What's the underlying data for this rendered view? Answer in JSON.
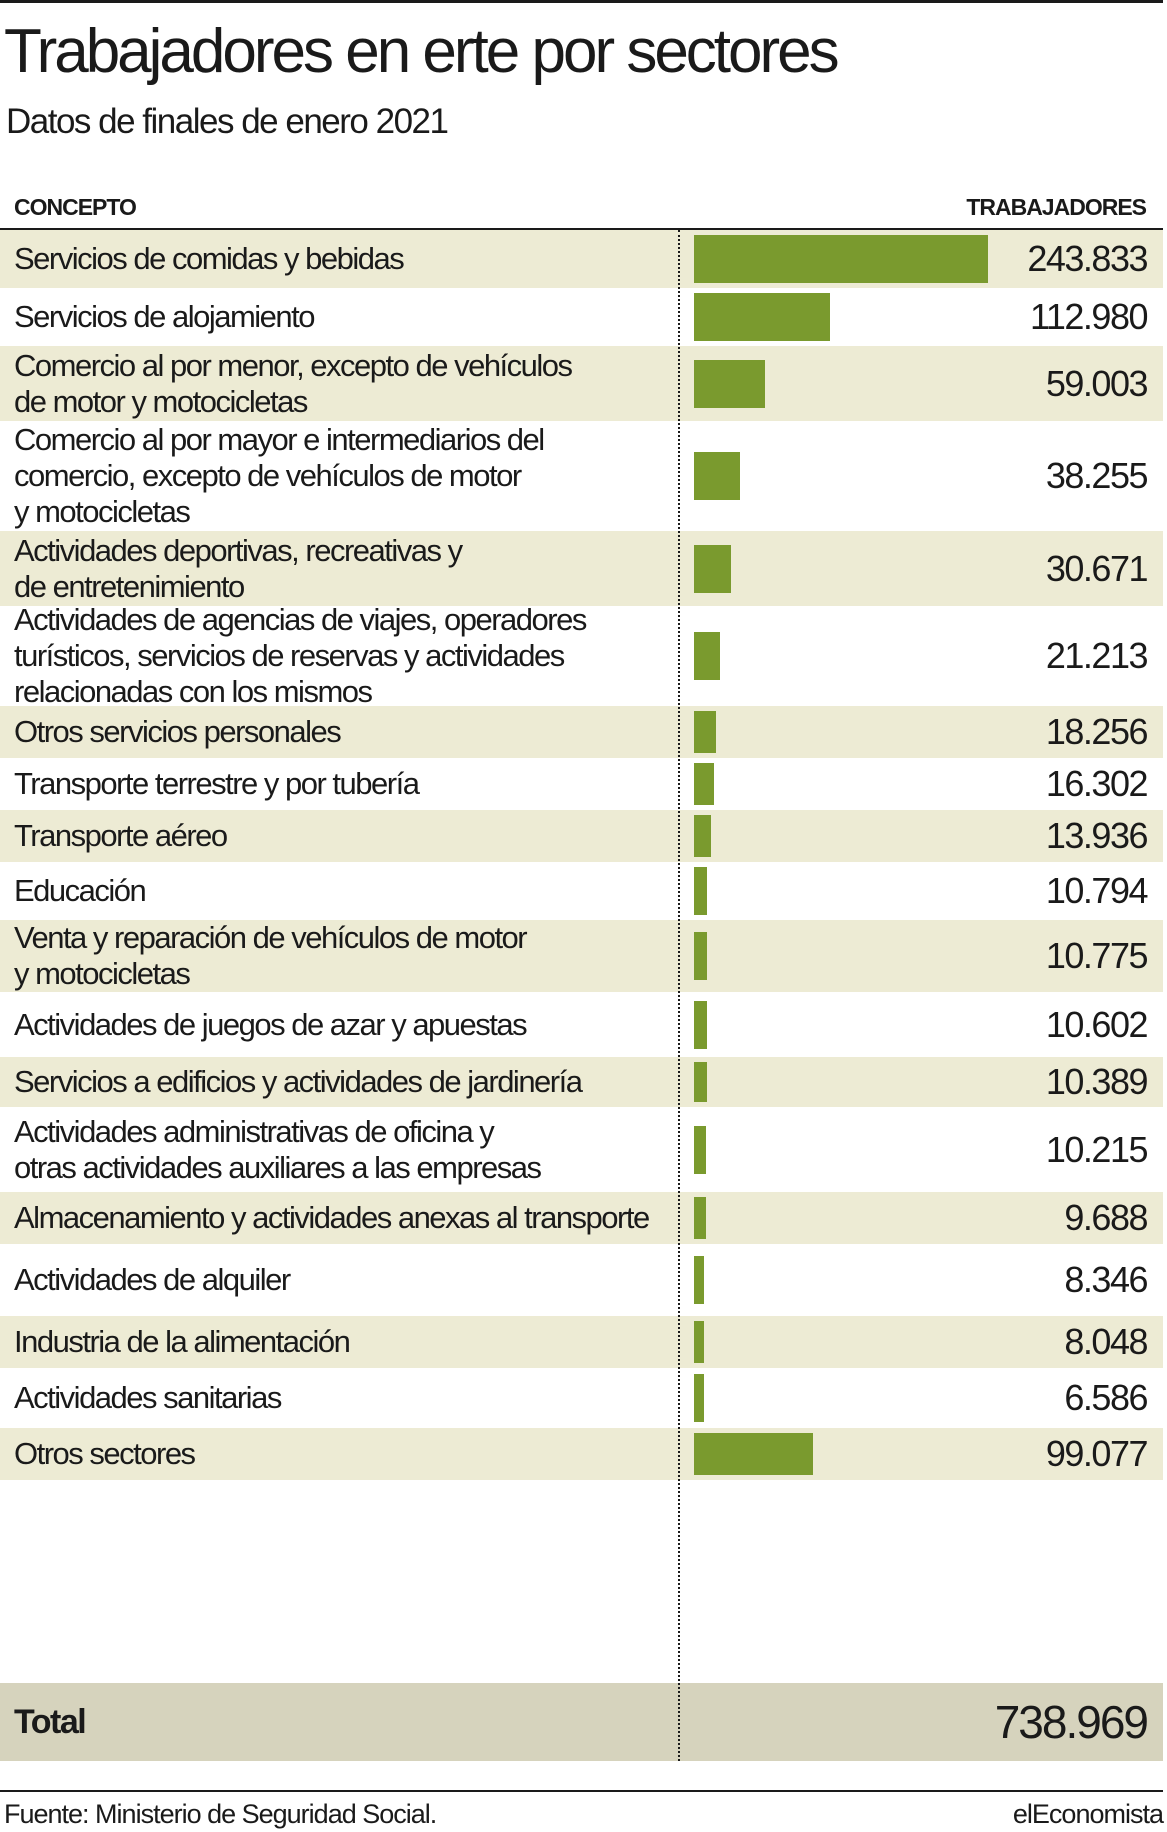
{
  "header": {
    "title": "Trabajadores en erte por sectores",
    "subtitle": "Datos de finales de enero 2021",
    "col_left": "CONCEPTO",
    "col_right": "TRABAJADORES"
  },
  "footer": {
    "source": "Fuente: Ministerio de Seguridad Social.",
    "brand": "elEconomista"
  },
  "colors": {
    "bar": "#7a9a2e",
    "row_shade": "#edebd4",
    "total_shade": "#d6d3bd"
  },
  "total": {
    "label": "Total",
    "value": "738.969"
  },
  "chart_data": {
    "type": "bar",
    "orientation": "horizontal",
    "title": "Trabajadores en erte por sectores",
    "subtitle": "Datos de finales de enero 2021",
    "categories": [
      "Servicios de comidas y bebidas",
      "Servicios de alojamiento",
      "Comercio al por menor, excepto de vehículos\nde motor y motocicletas",
      "Comercio al por mayor e intermediarios del\ncomercio, excepto de vehículos de motor\ny motocicletas",
      "Actividades deportivas, recreativas y\nde entretenimiento",
      "Actividades de agencias de viajes, operadores\nturísticos, servicios de reservas y actividades\nrelacionadas con los mismos",
      "Otros servicios personales",
      "Transporte terrestre y por tubería",
      "Transporte aéreo",
      "Educación",
      "Venta y reparación de vehículos de motor\ny motocicletas",
      "Actividades de juegos de azar y apuestas",
      "Servicios a edificios y actividades de jardinería",
      "Actividades administrativas de oficina y\notras actividades auxiliares a las empresas",
      "Almacenamiento y actividades anexas al transporte",
      "Actividades de alquiler",
      "Industria de la alimentación",
      "Actividades sanitarias",
      "Otros sectores"
    ],
    "values": [
      243833,
      112980,
      59003,
      38255,
      30671,
      21213,
      18256,
      16302,
      13936,
      10794,
      10775,
      10602,
      10389,
      10215,
      9688,
      8346,
      8048,
      6586,
      99077
    ],
    "value_labels": [
      "243.833",
      "112.980",
      "59.003",
      "38.255",
      "30.671",
      "21.213",
      "18.256",
      "16.302",
      "13.936",
      "10.794",
      "10.775",
      "10.602",
      "10.389",
      "10.215",
      "9.688",
      "8.346",
      "8.048",
      "6.586",
      "99.077"
    ],
    "total": 738969,
    "grid": false
  }
}
